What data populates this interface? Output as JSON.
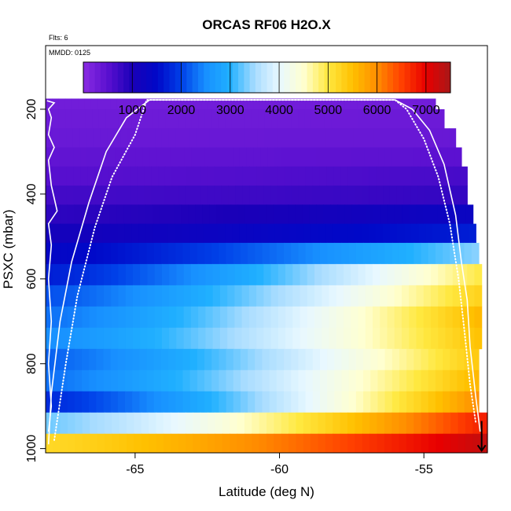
{
  "chart_data": {
    "type": "heatmap",
    "title": "ORCAS RF06 H2O.X",
    "notes": {
      "flights": "Flts: 6",
      "date": "MMDD: 0125"
    },
    "xlabel": "Latitude (deg N)",
    "ylabel": "PSXC (mbar)",
    "xlim": [
      -68.1,
      -52.8
    ],
    "ylim": [
      1010,
      50
    ],
    "y_reversed": true,
    "x_ticks": [
      -65,
      -60,
      -55
    ],
    "x_tick_labels": [
      "-65",
      "-60",
      "-55"
    ],
    "y_ticks": [
      200,
      400,
      600,
      800,
      1000
    ],
    "y_tick_labels": [
      "200",
      "400",
      "600",
      "800",
      "1000"
    ],
    "colorbar": {
      "min": 0,
      "max": 7500,
      "ticks": [
        1000,
        2000,
        3000,
        4000,
        5000,
        6000,
        7000
      ],
      "tick_labels": [
        "1000",
        "2000",
        "3000",
        "4000",
        "5000",
        "6000",
        "7000"
      ],
      "colors": [
        "#8a2be2",
        "#5a10d0",
        "#1a00b8",
        "#0008c8",
        "#0040e8",
        "#1890ff",
        "#20b0ff",
        "#a8dcff",
        "#e8f8ff",
        "#ffffd0",
        "#ffe840",
        "#ffc000",
        "#ff8c00",
        "#ff4000",
        "#e80000",
        "#a81818"
      ]
    },
    "x_range_data": [
      -68.1,
      -52.8
    ],
    "layers": [
      {
        "p0": 175,
        "p1": 200,
        "x_end": -54.6,
        "v_start": 260,
        "v_end": 260
      },
      {
        "p0": 200,
        "p1": 245,
        "x_end": -54.3,
        "v_start": 300,
        "v_end": 310
      },
      {
        "p0": 245,
        "p1": 290,
        "x_end": -53.9,
        "v_start": 340,
        "v_end": 360
      },
      {
        "p0": 290,
        "p1": 335,
        "x_end": -53.7,
        "v_start": 430,
        "v_end": 480
      },
      {
        "p0": 335,
        "p1": 380,
        "x_end": -53.5,
        "v_start": 520,
        "v_end": 650
      },
      {
        "p0": 380,
        "p1": 425,
        "x_end": -53.5,
        "v_start": 680,
        "v_end": 800
      },
      {
        "p0": 425,
        "p1": 470,
        "x_end": -53.3,
        "v_start": 850,
        "v_end": 1300
      },
      {
        "p0": 470,
        "p1": 515,
        "x_end": -53.2,
        "v_start": 1100,
        "v_end": 1700
      },
      {
        "p0": 515,
        "p1": 565,
        "x_end": -53.1,
        "v_start": 1400,
        "v_end": 3400
      },
      {
        "p0": 565,
        "p1": 615,
        "x_end": -53.0,
        "v_start": 1700,
        "v_end": 5000
      },
      {
        "p0": 615,
        "p1": 665,
        "x_end": -53.0,
        "v_start": 2100,
        "v_end": 5300
      },
      {
        "p0": 665,
        "p1": 715,
        "x_end": -53.0,
        "v_start": 2300,
        "v_end": 5600
      },
      {
        "p0": 715,
        "p1": 765,
        "x_end": -53.0,
        "v_start": 2500,
        "v_end": 5500
      },
      {
        "p0": 765,
        "p1": 815,
        "x_end": -53.1,
        "v_start": 2200,
        "v_end": 5400
      },
      {
        "p0": 815,
        "p1": 865,
        "x_end": -53.1,
        "v_start": 2300,
        "v_end": 5600
      },
      {
        "p0": 865,
        "p1": 915,
        "x_end": -53.1,
        "v_start": 1800,
        "v_end": 6000
      },
      {
        "p0": 915,
        "p1": 965,
        "x_end": -52.8,
        "v_start": 3300,
        "v_end": 6800
      },
      {
        "p0": 965,
        "p1": 1010,
        "x_end": -52.8,
        "v_start": 5200,
        "v_end": 7300
      }
    ],
    "flight_tracks": [
      {
        "name": "",
        "style": "solid",
        "points": [
          [
            -68.0,
            990
          ],
          [
            -67.9,
            870
          ],
          [
            -67.6,
            700
          ],
          [
            -67.2,
            560
          ],
          [
            -66.6,
            420
          ],
          [
            -66.0,
            300
          ],
          [
            -65.3,
            220
          ],
          [
            -64.5,
            178
          ],
          [
            -56.0,
            178
          ],
          [
            -55.4,
            200
          ],
          [
            -54.8,
            250
          ],
          [
            -54.3,
            330
          ],
          [
            -53.9,
            450
          ],
          [
            -53.7,
            560
          ],
          [
            -53.5,
            650
          ],
          [
            -53.4,
            760
          ],
          [
            -53.2,
            880
          ],
          [
            -53.05,
            960
          ]
        ]
      },
      {
        "name": "",
        "style": "dotted",
        "points": [
          [
            -67.8,
            980
          ],
          [
            -67.4,
            800
          ],
          [
            -67.0,
            640
          ],
          [
            -66.4,
            480
          ],
          [
            -65.8,
            360
          ],
          [
            -65.0,
            260
          ],
          [
            -64.6,
            178
          ],
          [
            -56.0,
            178
          ],
          [
            -55.6,
            200
          ],
          [
            -55.0,
            270
          ],
          [
            -54.5,
            360
          ],
          [
            -54.1,
            470
          ],
          [
            -53.8,
            600
          ],
          [
            -53.6,
            720
          ],
          [
            -53.4,
            850
          ],
          [
            -53.2,
            940
          ]
        ]
      },
      {
        "name": "",
        "style": "solid",
        "points": [
          [
            -68.05,
            180
          ],
          [
            -67.8,
            185
          ],
          [
            -68.0,
            200
          ],
          [
            -67.9,
            220
          ],
          [
            -68.0,
            260
          ],
          [
            -67.8,
            290
          ],
          [
            -68.0,
            320
          ],
          [
            -67.9,
            380
          ],
          [
            -67.7,
            440
          ],
          [
            -68.0,
            470
          ],
          [
            -67.9,
            520
          ],
          [
            -68.0,
            600
          ],
          [
            -67.9,
            700
          ],
          [
            -68.0,
            800
          ],
          [
            -67.9,
            900
          ],
          [
            -68.0,
            960
          ]
        ]
      }
    ],
    "descent_arrow": {
      "x": -53.0,
      "p_from": 935,
      "p_to": 1005
    },
    "grid": false,
    "legend": "colorbar-top-inside"
  }
}
